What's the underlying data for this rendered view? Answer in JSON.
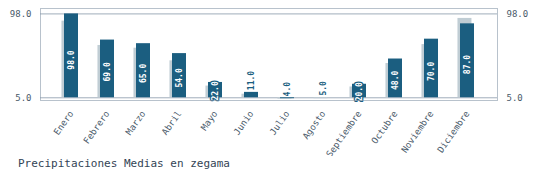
{
  "chart_data": {
    "type": "bar",
    "title": "Precipitaciones Medias en zegama",
    "categories": [
      "Enero",
      "Febrero",
      "Marzo",
      "Abril",
      "Mayo",
      "Junio",
      "Julio",
      "Agosto",
      "Septiembre",
      "Octubre",
      "Noviembre",
      "Diciembre"
    ],
    "bottom": 5.0,
    "series": [
      {
        "color": "#c0cdd4",
        "values": [
          90.0,
          63.0,
          60.0,
          46.0,
          18.0,
          9.0,
          3.5,
          4.0,
          17.0,
          43.0,
          64.0,
          93.0
        ]
      },
      {
        "color": "#1b5e80",
        "values": [
          98.0,
          69.0,
          65.0,
          54.0,
          22.0,
          11.0,
          4.0,
          5.0,
          20.0,
          48.0,
          70.0,
          87.0
        ],
        "value_labels": [
          "98.0",
          "69.0",
          "65.0",
          "54.0",
          "22.0",
          "11.0",
          "4.0",
          "5.0",
          "20.0",
          "48.0",
          "70.0",
          "87.0"
        ],
        "data_labels": true
      }
    ],
    "ylim": [
      2.0,
      104.0
    ],
    "yticks": [
      {
        "value": 5.0,
        "label": "5.0"
      },
      {
        "value": 98.0,
        "label": "98.0"
      }
    ],
    "y2lim": [
      2.0,
      104.0
    ],
    "y2ticks": [
      {
        "value": 5.0,
        "label": "5.0"
      },
      {
        "value": 98.0,
        "label": "98.0"
      }
    ],
    "grid": true
  }
}
